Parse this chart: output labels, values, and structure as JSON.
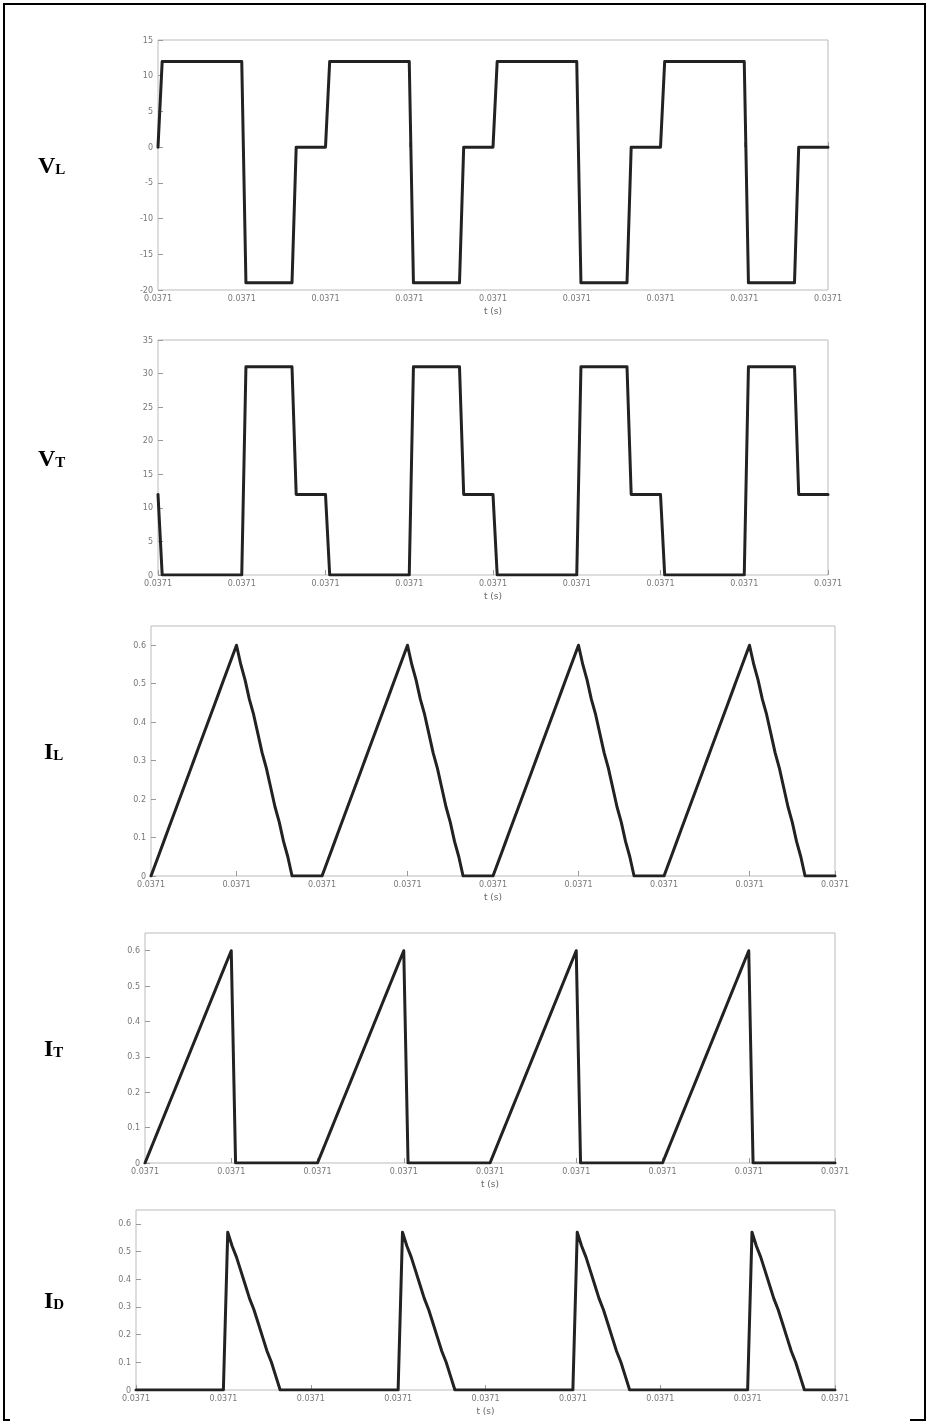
{
  "chart_data": [
    {
      "type": "line",
      "ylabel": "V$_{L}$",
      "xlabel": "t (s)",
      "ylim": [
        -20,
        15
      ],
      "yticks": [
        -20,
        -15,
        -10,
        -5,
        0,
        5,
        10,
        15
      ],
      "grid": false,
      "marker": "none",
      "line_style": "solid",
      "categories": [
        "0.0371",
        null,
        null,
        null,
        null,
        null,
        null,
        null,
        null,
        null,
        null,
        null,
        null,
        null,
        null,
        null,
        null,
        null,
        null,
        null,
        "0.0371",
        null,
        null,
        null,
        null,
        null,
        null,
        null,
        null,
        null,
        null,
        null,
        null,
        null,
        null,
        null,
        null,
        null,
        null,
        null,
        "0.0371",
        null,
        null,
        null,
        null,
        null,
        null,
        null,
        null,
        null,
        null,
        null,
        null,
        null,
        null,
        null,
        null,
        null,
        null,
        null,
        "0.0371",
        null,
        null,
        null,
        null,
        null,
        null,
        null,
        null,
        null,
        null,
        null,
        null,
        null,
        null,
        null,
        null,
        null,
        null,
        null,
        "0.0371",
        null,
        null,
        null,
        null,
        null,
        null,
        null,
        null,
        null,
        null,
        null,
        null,
        null,
        null,
        null,
        null,
        null,
        null,
        null,
        "0.0371",
        null,
        null,
        null,
        null,
        null,
        null,
        null,
        null,
        null,
        null,
        null,
        null,
        null,
        null,
        null,
        null,
        null,
        null,
        null,
        "0.0371",
        null,
        null,
        null,
        null,
        null,
        null,
        null,
        null,
        null,
        null,
        null,
        null,
        null,
        null,
        null,
        null,
        null,
        null,
        null,
        "0.0371",
        null,
        null,
        null,
        null,
        null,
        null,
        null,
        null,
        null,
        null,
        null,
        null,
        null,
        null,
        null,
        null,
        null,
        null,
        null,
        "0.0371"
      ],
      "series": [
        {
          "color": "#222222",
          "values": [
            0,
            12,
            12,
            12,
            12,
            12,
            12,
            12,
            12,
            12,
            12,
            12,
            12,
            12,
            12,
            12,
            12,
            12,
            12,
            12,
            12,
            -19,
            -19,
            -19,
            -19,
            -19,
            -19,
            -19,
            -19,
            -19,
            -19,
            -19,
            -19,
            0,
            0,
            0,
            0,
            0,
            0,
            0,
            0,
            12,
            12,
            12,
            12,
            12,
            12,
            12,
            12,
            12,
            12,
            12,
            12,
            12,
            12,
            12,
            12,
            12,
            12,
            12,
            12,
            -19,
            -19,
            -19,
            -19,
            -19,
            -19,
            -19,
            -19,
            -19,
            -19,
            -19,
            -19,
            0,
            0,
            0,
            0,
            0,
            0,
            0,
            0,
            12,
            12,
            12,
            12,
            12,
            12,
            12,
            12,
            12,
            12,
            12,
            12,
            12,
            12,
            12,
            12,
            12,
            12,
            12,
            12,
            -19,
            -19,
            -19,
            -19,
            -19,
            -19,
            -19,
            -19,
            -19,
            -19,
            -19,
            -19,
            0,
            0,
            0,
            0,
            0,
            0,
            0,
            0,
            12,
            12,
            12,
            12,
            12,
            12,
            12,
            12,
            12,
            12,
            12,
            12,
            12,
            12,
            12,
            12,
            12,
            12,
            12,
            12,
            -19,
            -19,
            -19,
            -19,
            -19,
            -19,
            -19,
            -19,
            -19,
            -19,
            -19,
            -19,
            0,
            0,
            0,
            0,
            0,
            0,
            0,
            0
          ]
        }
      ]
    },
    {
      "type": "line",
      "ylabel": "V$_{T}$",
      "xlabel": "t (s)",
      "ylim": [
        0,
        35
      ],
      "yticks": [
        0,
        5,
        10,
        15,
        20,
        25,
        30,
        35
      ],
      "grid": false,
      "marker": "none",
      "line_style": "solid",
      "categories": [
        "0.0371",
        null,
        null,
        null,
        null,
        null,
        null,
        null,
        null,
        null,
        null,
        null,
        null,
        null,
        null,
        null,
        null,
        null,
        null,
        null,
        "0.0371",
        null,
        null,
        null,
        null,
        null,
        null,
        null,
        null,
        null,
        null,
        null,
        null,
        null,
        null,
        null,
        null,
        null,
        null,
        null,
        "0.0371",
        null,
        null,
        null,
        null,
        null,
        null,
        null,
        null,
        null,
        null,
        null,
        null,
        null,
        null,
        null,
        null,
        null,
        null,
        null,
        "0.0371",
        null,
        null,
        null,
        null,
        null,
        null,
        null,
        null,
        null,
        null,
        null,
        null,
        null,
        null,
        null,
        null,
        null,
        null,
        null,
        "0.0371",
        null,
        null,
        null,
        null,
        null,
        null,
        null,
        null,
        null,
        null,
        null,
        null,
        null,
        null,
        null,
        null,
        null,
        null,
        null,
        "0.0371",
        null,
        null,
        null,
        null,
        null,
        null,
        null,
        null,
        null,
        null,
        null,
        null,
        null,
        null,
        null,
        null,
        null,
        null,
        null,
        "0.0371",
        null,
        null,
        null,
        null,
        null,
        null,
        null,
        null,
        null,
        null,
        null,
        null,
        null,
        null,
        null,
        null,
        null,
        null,
        null,
        "0.0371",
        null,
        null,
        null,
        null,
        null,
        null,
        null,
        null,
        null,
        null,
        null,
        null,
        null,
        null,
        null,
        null,
        null,
        null,
        null,
        "0.0371"
      ],
      "series": [
        {
          "color": "#222222",
          "values": [
            12,
            0,
            0,
            0,
            0,
            0,
            0,
            0,
            0,
            0,
            0,
            0,
            0,
            0,
            0,
            0,
            0,
            0,
            0,
            0,
            0,
            31,
            31,
            31,
            31,
            31,
            31,
            31,
            31,
            31,
            31,
            31,
            31,
            12,
            12,
            12,
            12,
            12,
            12,
            12,
            12,
            0,
            0,
            0,
            0,
            0,
            0,
            0,
            0,
            0,
            0,
            0,
            0,
            0,
            0,
            0,
            0,
            0,
            0,
            0,
            0,
            31,
            31,
            31,
            31,
            31,
            31,
            31,
            31,
            31,
            31,
            31,
            31,
            12,
            12,
            12,
            12,
            12,
            12,
            12,
            12,
            0,
            0,
            0,
            0,
            0,
            0,
            0,
            0,
            0,
            0,
            0,
            0,
            0,
            0,
            0,
            0,
            0,
            0,
            0,
            0,
            31,
            31,
            31,
            31,
            31,
            31,
            31,
            31,
            31,
            31,
            31,
            31,
            12,
            12,
            12,
            12,
            12,
            12,
            12,
            12,
            0,
            0,
            0,
            0,
            0,
            0,
            0,
            0,
            0,
            0,
            0,
            0,
            0,
            0,
            0,
            0,
            0,
            0,
            0,
            0,
            31,
            31,
            31,
            31,
            31,
            31,
            31,
            31,
            31,
            31,
            31,
            31,
            12,
            12,
            12,
            12,
            12,
            12,
            12,
            12
          ]
        }
      ]
    },
    {
      "type": "line",
      "ylabel": "I$_{L}$",
      "xlabel": "t (s)",
      "ylim": [
        0,
        0.65
      ],
      "yticks": [
        0,
        0.1,
        0.2,
        0.3,
        0.4,
        0.5,
        0.6
      ],
      "grid": false,
      "marker": "none",
      "line_style": "solid",
      "categories": [
        "0.0371",
        null,
        null,
        null,
        null,
        null,
        null,
        null,
        null,
        null,
        null,
        null,
        null,
        null,
        null,
        null,
        null,
        null,
        null,
        null,
        "0.0371",
        null,
        null,
        null,
        null,
        null,
        null,
        null,
        null,
        null,
        null,
        null,
        null,
        null,
        null,
        null,
        null,
        null,
        null,
        null,
        "0.0371",
        null,
        null,
        null,
        null,
        null,
        null,
        null,
        null,
        null,
        null,
        null,
        null,
        null,
        null,
        null,
        null,
        null,
        null,
        null,
        "0.0371",
        null,
        null,
        null,
        null,
        null,
        null,
        null,
        null,
        null,
        null,
        null,
        null,
        null,
        null,
        null,
        null,
        null,
        null,
        null,
        "0.0371",
        null,
        null,
        null,
        null,
        null,
        null,
        null,
        null,
        null,
        null,
        null,
        null,
        null,
        null,
        null,
        null,
        null,
        null,
        null,
        "0.0371",
        null,
        null,
        null,
        null,
        null,
        null,
        null,
        null,
        null,
        null,
        null,
        null,
        null,
        null,
        null,
        null,
        null,
        null,
        null,
        "0.0371",
        null,
        null,
        null,
        null,
        null,
        null,
        null,
        null,
        null,
        null,
        null,
        null,
        null,
        null,
        null,
        null,
        null,
        null,
        null,
        "0.0371",
        null,
        null,
        null,
        null,
        null,
        null,
        null,
        null,
        null,
        null,
        null,
        null,
        null,
        null,
        null,
        null,
        null,
        null,
        null,
        "0.0371"
      ],
      "series": [
        {
          "color": "#222222",
          "values": [
            0,
            0.03,
            0.06,
            0.09,
            0.12,
            0.15,
            0.18,
            0.21,
            0.24,
            0.27,
            0.3,
            0.33,
            0.36,
            0.39,
            0.42,
            0.45,
            0.48,
            0.51,
            0.54,
            0.57,
            0.6,
            0.55,
            0.51,
            0.46,
            0.42,
            0.37,
            0.32,
            0.28,
            0.23,
            0.18,
            0.14,
            0.09,
            0.05,
            0,
            0,
            0,
            0,
            0,
            0,
            0,
            0,
            0.03,
            0.06,
            0.09,
            0.12,
            0.15,
            0.18,
            0.21,
            0.24,
            0.27,
            0.3,
            0.33,
            0.36,
            0.39,
            0.42,
            0.45,
            0.48,
            0.51,
            0.54,
            0.57,
            0.6,
            0.55,
            0.51,
            0.46,
            0.42,
            0.37,
            0.32,
            0.28,
            0.23,
            0.18,
            0.14,
            0.09,
            0.05,
            0,
            0,
            0,
            0,
            0,
            0,
            0,
            0,
            0.03,
            0.06,
            0.09,
            0.12,
            0.15,
            0.18,
            0.21,
            0.24,
            0.27,
            0.3,
            0.33,
            0.36,
            0.39,
            0.42,
            0.45,
            0.48,
            0.51,
            0.54,
            0.57,
            0.6,
            0.55,
            0.51,
            0.46,
            0.42,
            0.37,
            0.32,
            0.28,
            0.23,
            0.18,
            0.14,
            0.09,
            0.05,
            0,
            0,
            0,
            0,
            0,
            0,
            0,
            0,
            0.03,
            0.06,
            0.09,
            0.12,
            0.15,
            0.18,
            0.21,
            0.24,
            0.27,
            0.3,
            0.33,
            0.36,
            0.39,
            0.42,
            0.45,
            0.48,
            0.51,
            0.54,
            0.57,
            0.6,
            0.55,
            0.51,
            0.46,
            0.42,
            0.37,
            0.32,
            0.28,
            0.23,
            0.18,
            0.14,
            0.09,
            0.05,
            0,
            0,
            0,
            0,
            0,
            0,
            0,
            0
          ]
        }
      ]
    },
    {
      "type": "line",
      "ylabel": "I$_{T}$",
      "xlabel": "t (s)",
      "ylim": [
        0,
        0.65
      ],
      "yticks": [
        0,
        0.1,
        0.2,
        0.3,
        0.4,
        0.5,
        0.6
      ],
      "grid": false,
      "marker": "none",
      "line_style": "solid",
      "categories": [
        "0.0371",
        null,
        null,
        null,
        null,
        null,
        null,
        null,
        null,
        null,
        null,
        null,
        null,
        null,
        null,
        null,
        null,
        null,
        null,
        null,
        "0.0371",
        null,
        null,
        null,
        null,
        null,
        null,
        null,
        null,
        null,
        null,
        null,
        null,
        null,
        null,
        null,
        null,
        null,
        null,
        null,
        "0.0371",
        null,
        null,
        null,
        null,
        null,
        null,
        null,
        null,
        null,
        null,
        null,
        null,
        null,
        null,
        null,
        null,
        null,
        null,
        null,
        "0.0371",
        null,
        null,
        null,
        null,
        null,
        null,
        null,
        null,
        null,
        null,
        null,
        null,
        null,
        null,
        null,
        null,
        null,
        null,
        null,
        "0.0371",
        null,
        null,
        null,
        null,
        null,
        null,
        null,
        null,
        null,
        null,
        null,
        null,
        null,
        null,
        null,
        null,
        null,
        null,
        null,
        "0.0371",
        null,
        null,
        null,
        null,
        null,
        null,
        null,
        null,
        null,
        null,
        null,
        null,
        null,
        null,
        null,
        null,
        null,
        null,
        null,
        "0.0371",
        null,
        null,
        null,
        null,
        null,
        null,
        null,
        null,
        null,
        null,
        null,
        null,
        null,
        null,
        null,
        null,
        null,
        null,
        null,
        "0.0371",
        null,
        null,
        null,
        null,
        null,
        null,
        null,
        null,
        null,
        null,
        null,
        null,
        null,
        null,
        null,
        null,
        null,
        null,
        null,
        "0.0371"
      ],
      "series": [
        {
          "color": "#222222",
          "values": [
            0,
            0.03,
            0.06,
            0.09,
            0.12,
            0.15,
            0.18,
            0.21,
            0.24,
            0.27,
            0.3,
            0.33,
            0.36,
            0.39,
            0.42,
            0.45,
            0.48,
            0.51,
            0.54,
            0.57,
            0.6,
            0,
            0,
            0,
            0,
            0,
            0,
            0,
            0,
            0,
            0,
            0,
            0,
            0,
            0,
            0,
            0,
            0,
            0,
            0,
            0,
            0.03,
            0.06,
            0.09,
            0.12,
            0.15,
            0.18,
            0.21,
            0.24,
            0.27,
            0.3,
            0.33,
            0.36,
            0.39,
            0.42,
            0.45,
            0.48,
            0.51,
            0.54,
            0.57,
            0.6,
            0,
            0,
            0,
            0,
            0,
            0,
            0,
            0,
            0,
            0,
            0,
            0,
            0,
            0,
            0,
            0,
            0,
            0,
            0,
            0,
            0.03,
            0.06,
            0.09,
            0.12,
            0.15,
            0.18,
            0.21,
            0.24,
            0.27,
            0.3,
            0.33,
            0.36,
            0.39,
            0.42,
            0.45,
            0.48,
            0.51,
            0.54,
            0.57,
            0.6,
            0,
            0,
            0,
            0,
            0,
            0,
            0,
            0,
            0,
            0,
            0,
            0,
            0,
            0,
            0,
            0,
            0,
            0,
            0,
            0,
            0.03,
            0.06,
            0.09,
            0.12,
            0.15,
            0.18,
            0.21,
            0.24,
            0.27,
            0.3,
            0.33,
            0.36,
            0.39,
            0.42,
            0.45,
            0.48,
            0.51,
            0.54,
            0.57,
            0.6,
            0,
            0,
            0,
            0,
            0,
            0,
            0,
            0,
            0,
            0,
            0,
            0,
            0,
            0,
            0,
            0,
            0,
            0,
            0,
            0
          ]
        }
      ]
    },
    {
      "type": "line",
      "ylabel": "I$_{D}$",
      "xlabel": "t (s)",
      "ylim": [
        0,
        0.65
      ],
      "yticks": [
        0,
        0.1,
        0.2,
        0.3,
        0.4,
        0.5,
        0.6
      ],
      "grid": false,
      "marker": "none",
      "line_style": "solid",
      "categories": [
        "0.0371",
        null,
        null,
        null,
        null,
        null,
        null,
        null,
        null,
        null,
        null,
        null,
        null,
        null,
        null,
        null,
        null,
        null,
        null,
        null,
        "0.0371",
        null,
        null,
        null,
        null,
        null,
        null,
        null,
        null,
        null,
        null,
        null,
        null,
        null,
        null,
        null,
        null,
        null,
        null,
        null,
        "0.0371",
        null,
        null,
        null,
        null,
        null,
        null,
        null,
        null,
        null,
        null,
        null,
        null,
        null,
        null,
        null,
        null,
        null,
        null,
        null,
        "0.0371",
        null,
        null,
        null,
        null,
        null,
        null,
        null,
        null,
        null,
        null,
        null,
        null,
        null,
        null,
        null,
        null,
        null,
        null,
        null,
        "0.0371",
        null,
        null,
        null,
        null,
        null,
        null,
        null,
        null,
        null,
        null,
        null,
        null,
        null,
        null,
        null,
        null,
        null,
        null,
        null,
        "0.0371",
        null,
        null,
        null,
        null,
        null,
        null,
        null,
        null,
        null,
        null,
        null,
        null,
        null,
        null,
        null,
        null,
        null,
        null,
        null,
        "0.0371",
        null,
        null,
        null,
        null,
        null,
        null,
        null,
        null,
        null,
        null,
        null,
        null,
        null,
        null,
        null,
        null,
        null,
        null,
        null,
        "0.0371",
        null,
        null,
        null,
        null,
        null,
        null,
        null,
        null,
        null,
        null,
        null,
        null,
        null,
        null,
        null,
        null,
        null,
        null,
        null,
        "0.0371"
      ],
      "series": [
        {
          "color": "#222222",
          "values": [
            0,
            0,
            0,
            0,
            0,
            0,
            0,
            0,
            0,
            0,
            0,
            0,
            0,
            0,
            0,
            0,
            0,
            0,
            0,
            0,
            0,
            0.57,
            0.52,
            0.48,
            0.43,
            0.38,
            0.33,
            0.29,
            0.24,
            0.19,
            0.14,
            0.1,
            0.05,
            0,
            0,
            0,
            0,
            0,
            0,
            0,
            0,
            0,
            0,
            0,
            0,
            0,
            0,
            0,
            0,
            0,
            0,
            0,
            0,
            0,
            0,
            0,
            0,
            0,
            0,
            0,
            0,
            0.57,
            0.52,
            0.48,
            0.43,
            0.38,
            0.33,
            0.29,
            0.24,
            0.19,
            0.14,
            0.1,
            0.05,
            0,
            0,
            0,
            0,
            0,
            0,
            0,
            0,
            0,
            0,
            0,
            0,
            0,
            0,
            0,
            0,
            0,
            0,
            0,
            0,
            0,
            0,
            0,
            0,
            0,
            0,
            0,
            0,
            0.57,
            0.52,
            0.48,
            0.43,
            0.38,
            0.33,
            0.29,
            0.24,
            0.19,
            0.14,
            0.1,
            0.05,
            0,
            0,
            0,
            0,
            0,
            0,
            0,
            0,
            0,
            0,
            0,
            0,
            0,
            0,
            0,
            0,
            0,
            0,
            0,
            0,
            0,
            0,
            0,
            0,
            0,
            0,
            0,
            0,
            0.57,
            0.52,
            0.48,
            0.43,
            0.38,
            0.33,
            0.29,
            0.24,
            0.19,
            0.14,
            0.1,
            0.05,
            0,
            0,
            0,
            0,
            0,
            0,
            0,
            0
          ]
        }
      ]
    }
  ]
}
